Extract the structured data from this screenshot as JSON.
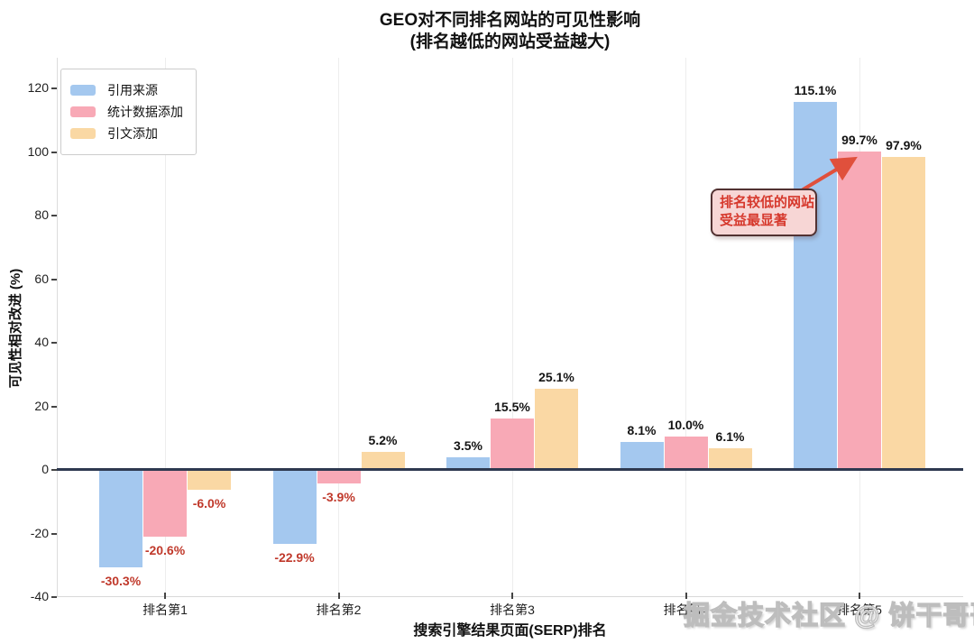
{
  "title": {
    "line1": "GEO对不同排名网站的可见性影响",
    "line2": "(排名越低的网站受益越大)"
  },
  "chart_data": {
    "type": "bar",
    "title": "GEO对不同排名网站的可见性影响",
    "subtitle": "(排名越低的网站受益越大)",
    "categories": [
      "排名第1",
      "排名第2",
      "排名第3",
      "排名第4",
      "排名第5"
    ],
    "series": [
      {
        "name": "引用来源",
        "color": "#a4c8ef",
        "values": [
          -30.3,
          -22.9,
          3.5,
          8.1,
          115.1
        ]
      },
      {
        "name": "统计数据添加",
        "color": "#f8a9b6",
        "values": [
          -20.6,
          -3.9,
          15.5,
          10.0,
          99.7
        ]
      },
      {
        "name": "引文添加",
        "color": "#fad8a4",
        "values": [
          -6.0,
          5.2,
          25.1,
          6.1,
          97.9
        ]
      }
    ],
    "value_label_suffix": "%",
    "xlabel": "搜索引擎结果页面(SERP)排名",
    "ylabel": "可见性相对改进 (%)",
    "y_ticks": [
      -40,
      -20,
      0,
      20,
      40,
      60,
      80,
      100,
      120
    ],
    "ylim": [
      -40,
      130
    ],
    "legend_position": "upper left",
    "grid": "vertical lines at each category",
    "zero_baseline": true
  },
  "annotation": {
    "line1": "排名较低的网站",
    "line2": "受益最显著",
    "points_to": "排名第5 统计数据添加 99.7%"
  },
  "watermark": {
    "text": "掘金技术社区 @ 饼干哥哥"
  },
  "colors": {
    "positive_label": "#141414",
    "negative_label": "#c0392b",
    "zero_line": "#2e3950",
    "grid_line": "#ededed",
    "annotation_text": "#d6382c",
    "annotation_bg": "#f7d6d5",
    "annotation_border": "#523232",
    "arrow": "#e0503c"
  }
}
